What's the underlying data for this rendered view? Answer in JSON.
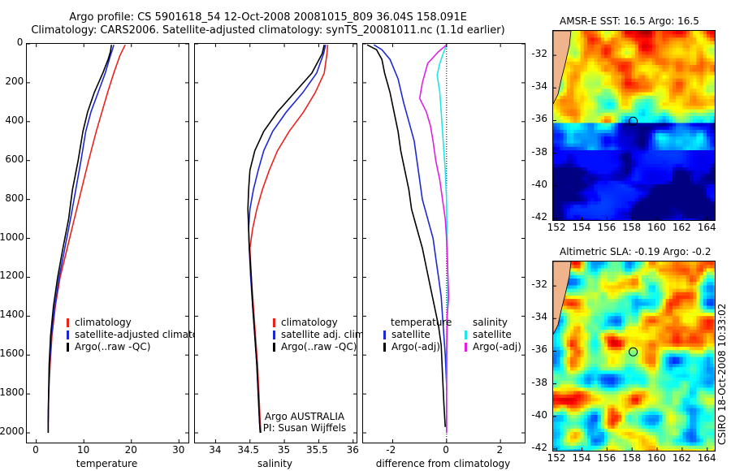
{
  "title": {
    "line1": "Argo profile: CS 5901618_54 12-Oct-2008 20081015_809 36.04S 158.091E",
    "line2": "Climatology: CARS2006. Satellite-adjusted climatology: synTS_20081011.nc (1.1d earlier)"
  },
  "colors": {
    "climatology": "#e8231c",
    "satellite": "#1c28d6",
    "argo": "#000000",
    "sal_satellite": "#22e6e6",
    "sal_argo": "#e020e0"
  },
  "chart_data": [
    {
      "type": "line",
      "panel": "temperature",
      "xlabel": "temperature",
      "ylabel": "",
      "xlim": [
        -2,
        32
      ],
      "ylim": [
        2050,
        0
      ],
      "xticks": [
        "0",
        "10",
        "20",
        "30"
      ],
      "yticks": [
        "0",
        "200",
        "400",
        "600",
        "800",
        "1000",
        "1200",
        "1400",
        "1600",
        "1800",
        "2000"
      ],
      "legend": [
        "climatology",
        "satellite-adjusted climatology",
        "Argo(..raw -QC)"
      ],
      "series": [
        {
          "name": "climatology",
          "points": [
            [
              18.7,
              5
            ],
            [
              18.2,
              30
            ],
            [
              17.6,
              60
            ],
            [
              16.3,
              150
            ],
            [
              15.0,
              250
            ],
            [
              13.8,
              350
            ],
            [
              12.6,
              450
            ],
            [
              11.0,
              600
            ],
            [
              9.5,
              750
            ],
            [
              8.0,
              900
            ],
            [
              6.5,
              1050
            ],
            [
              5.0,
              1200
            ],
            [
              4.0,
              1350
            ],
            [
              3.3,
              1500
            ],
            [
              2.9,
              1650
            ],
            [
              2.6,
              1800
            ],
            [
              2.5,
              1950
            ],
            [
              2.5,
              2000
            ]
          ]
        },
        {
          "name": "satellite-adjusted climatology",
          "points": [
            [
              16.3,
              5
            ],
            [
              16.0,
              30
            ],
            [
              15.6,
              60
            ],
            [
              14.5,
              150
            ],
            [
              13.0,
              250
            ],
            [
              11.5,
              350
            ],
            [
              10.4,
              450
            ],
            [
              9.4,
              600
            ],
            [
              8.3,
              750
            ],
            [
              7.2,
              900
            ],
            [
              6.0,
              1050
            ],
            [
              4.8,
              1200
            ],
            [
              3.9,
              1350
            ],
            [
              3.2,
              1500
            ],
            [
              2.8,
              1650
            ],
            [
              2.6,
              1800
            ],
            [
              2.5,
              1950
            ],
            [
              2.5,
              2000
            ]
          ]
        },
        {
          "name": "Argo(..raw -QC)",
          "points": [
            [
              15.8,
              5
            ],
            [
              15.6,
              40
            ],
            [
              15.1,
              80
            ],
            [
              14.0,
              150
            ],
            [
              12.2,
              250
            ],
            [
              10.8,
              350
            ],
            [
              9.8,
              450
            ],
            [
              8.8,
              600
            ],
            [
              7.6,
              750
            ],
            [
              6.8,
              900
            ],
            [
              5.6,
              1050
            ],
            [
              4.5,
              1200
            ],
            [
              3.6,
              1350
            ],
            [
              3.0,
              1500
            ],
            [
              2.7,
              1650
            ],
            [
              2.6,
              1800
            ],
            [
              2.5,
              1950
            ],
            [
              2.5,
              2000
            ]
          ]
        }
      ]
    },
    {
      "type": "line",
      "panel": "salinity",
      "xlabel": "salinity",
      "ylabel": "",
      "xlim": [
        33.7,
        36.05
      ],
      "ylim": [
        2050,
        0
      ],
      "xticks": [
        "34",
        "34.5",
        "35",
        "35.5",
        "36"
      ],
      "legend": [
        "climatology",
        "satellite adj. clim.",
        "Argo(..raw -QC)"
      ],
      "annotation": [
        "Argo AUSTRALIA",
        "PI: Susan Wijffels"
      ],
      "series": [
        {
          "name": "climatology",
          "points": [
            [
              35.63,
              5
            ],
            [
              35.62,
              50
            ],
            [
              35.58,
              150
            ],
            [
              35.45,
              250
            ],
            [
              35.28,
              350
            ],
            [
              35.07,
              450
            ],
            [
              34.9,
              550
            ],
            [
              34.78,
              650
            ],
            [
              34.68,
              750
            ],
            [
              34.6,
              850
            ],
            [
              34.54,
              950
            ],
            [
              34.5,
              1050
            ],
            [
              34.52,
              1200
            ],
            [
              34.55,
              1350
            ],
            [
              34.58,
              1500
            ],
            [
              34.61,
              1650
            ],
            [
              34.63,
              1800
            ],
            [
              34.65,
              1950
            ],
            [
              34.66,
              2000
            ]
          ]
        },
        {
          "name": "satellite adj. clim.",
          "points": [
            [
              35.6,
              5
            ],
            [
              35.57,
              50
            ],
            [
              35.47,
              150
            ],
            [
              35.27,
              250
            ],
            [
              35.03,
              350
            ],
            [
              34.83,
              450
            ],
            [
              34.7,
              550
            ],
            [
              34.62,
              650
            ],
            [
              34.55,
              750
            ],
            [
              34.5,
              850
            ],
            [
              34.48,
              950
            ],
            [
              34.49,
              1050
            ],
            [
              34.51,
              1200
            ],
            [
              34.54,
              1350
            ],
            [
              34.57,
              1500
            ],
            [
              34.6,
              1650
            ],
            [
              34.62,
              1800
            ],
            [
              34.64,
              1950
            ],
            [
              34.65,
              2000
            ]
          ]
        },
        {
          "name": "Argo(..raw -QC)",
          "points": [
            [
              35.58,
              5
            ],
            [
              35.55,
              50
            ],
            [
              35.4,
              150
            ],
            [
              35.15,
              250
            ],
            [
              34.9,
              350
            ],
            [
              34.7,
              450
            ],
            [
              34.57,
              550
            ],
            [
              34.5,
              650
            ],
            [
              34.48,
              750
            ],
            [
              34.47,
              850
            ],
            [
              34.48,
              950
            ],
            [
              34.49,
              1050
            ],
            [
              34.52,
              1200
            ],
            [
              34.54,
              1350
            ],
            [
              34.57,
              1500
            ],
            [
              34.6,
              1650
            ],
            [
              34.62,
              1800
            ],
            [
              34.64,
              1950
            ],
            [
              34.65,
              2000
            ]
          ]
        }
      ]
    },
    {
      "type": "line",
      "panel": "difference",
      "xlabel": "difference from climatology",
      "ylabel": "",
      "xlim": [
        -3.1,
        2.9
      ],
      "ylim": [
        2050,
        0
      ],
      "xticks": [
        "-2",
        "0",
        "2"
      ],
      "legend": [
        "temperature",
        "satellite",
        "Argo(-adj)",
        "salinity",
        "satellite",
        "Argo(-adj)"
      ],
      "series": [
        {
          "name": "satellite",
          "points": [
            [
              -2.7,
              5
            ],
            [
              -2.4,
              30
            ],
            [
              -2.1,
              80
            ],
            [
              -1.8,
              180
            ],
            [
              -1.6,
              300
            ],
            [
              -1.4,
              400
            ],
            [
              -1.2,
              500
            ],
            [
              -1.1,
              600
            ],
            [
              -1.0,
              700
            ],
            [
              -0.9,
              800
            ],
            [
              -0.7,
              900
            ],
            [
              -0.5,
              1000
            ],
            [
              -0.4,
              1100
            ],
            [
              -0.3,
              1200
            ],
            [
              -0.2,
              1300
            ],
            [
              -0.15,
              1400
            ],
            [
              -0.1,
              1500
            ],
            [
              -0.05,
              1600
            ],
            [
              0,
              1750
            ],
            [
              0,
              1900
            ],
            [
              0,
              2000
            ]
          ]
        },
        {
          "name": "Argo(-adj)",
          "points": [
            [
              -2.95,
              5
            ],
            [
              -2.6,
              30
            ],
            [
              -2.4,
              80
            ],
            [
              -2.3,
              150
            ],
            [
              -2.1,
              250
            ],
            [
              -1.95,
              350
            ],
            [
              -1.8,
              450
            ],
            [
              -1.7,
              550
            ],
            [
              -1.55,
              650
            ],
            [
              -1.4,
              750
            ],
            [
              -1.3,
              850
            ],
            [
              -1.1,
              950
            ],
            [
              -0.9,
              1050
            ],
            [
              -0.75,
              1150
            ],
            [
              -0.6,
              1250
            ],
            [
              -0.45,
              1350
            ],
            [
              -0.3,
              1450
            ],
            [
              -0.2,
              1550
            ],
            [
              -0.15,
              1700
            ],
            [
              -0.1,
              1850
            ],
            [
              -0.05,
              1970
            ]
          ]
        },
        {
          "name": "satellite",
          "points": [
            [
              0,
              5
            ],
            [
              -0.1,
              40
            ],
            [
              -0.25,
              100
            ],
            [
              -0.35,
              160
            ],
            [
              -0.25,
              250
            ],
            [
              -0.2,
              350
            ],
            [
              -0.15,
              450
            ],
            [
              -0.1,
              550
            ],
            [
              -0.05,
              650
            ],
            [
              0,
              800
            ],
            [
              0.02,
              1000
            ],
            [
              0.05,
              1200
            ],
            [
              0.03,
              1400
            ],
            [
              0.02,
              1600
            ],
            [
              0,
              1800
            ],
            [
              0,
              1950
            ],
            [
              0,
              2000
            ]
          ]
        },
        {
          "name": "Argo(-adj)",
          "points": [
            [
              0,
              5
            ],
            [
              -0.3,
              40
            ],
            [
              -0.7,
              100
            ],
            [
              -0.9,
              200
            ],
            [
              -1.0,
              280
            ],
            [
              -0.75,
              350
            ],
            [
              -0.6,
              420
            ],
            [
              -0.5,
              500
            ],
            [
              -0.4,
              600
            ],
            [
              -0.25,
              700
            ],
            [
              -0.15,
              800
            ],
            [
              -0.05,
              900
            ],
            [
              0,
              1000
            ],
            [
              0.05,
              1200
            ],
            [
              0.08,
              1300
            ],
            [
              0.02,
              1400
            ],
            [
              0,
              1600
            ],
            [
              0,
              1800
            ],
            [
              0,
              2000
            ]
          ]
        }
      ]
    }
  ],
  "maps": [
    {
      "title": "AMSR-E SST: 16.5 Argo: 16.5",
      "yticks": [
        "-32",
        "-34",
        "-36",
        "-38",
        "-40",
        "-42"
      ],
      "xticks": [
        "152",
        "154",
        "156",
        "158",
        "160",
        "162",
        "164"
      ],
      "kind": "sst"
    },
    {
      "title": "Altimetric SLA: -0.19 Argo: -0.2",
      "yticks": [
        "-32",
        "-34",
        "-36",
        "-38",
        "-40",
        "-42"
      ],
      "xticks": [
        "152",
        "154",
        "156",
        "158",
        "160",
        "162",
        "164"
      ],
      "kind": "sla"
    }
  ],
  "credit": "CSIRO 18-Oct-2008 10:33:02"
}
